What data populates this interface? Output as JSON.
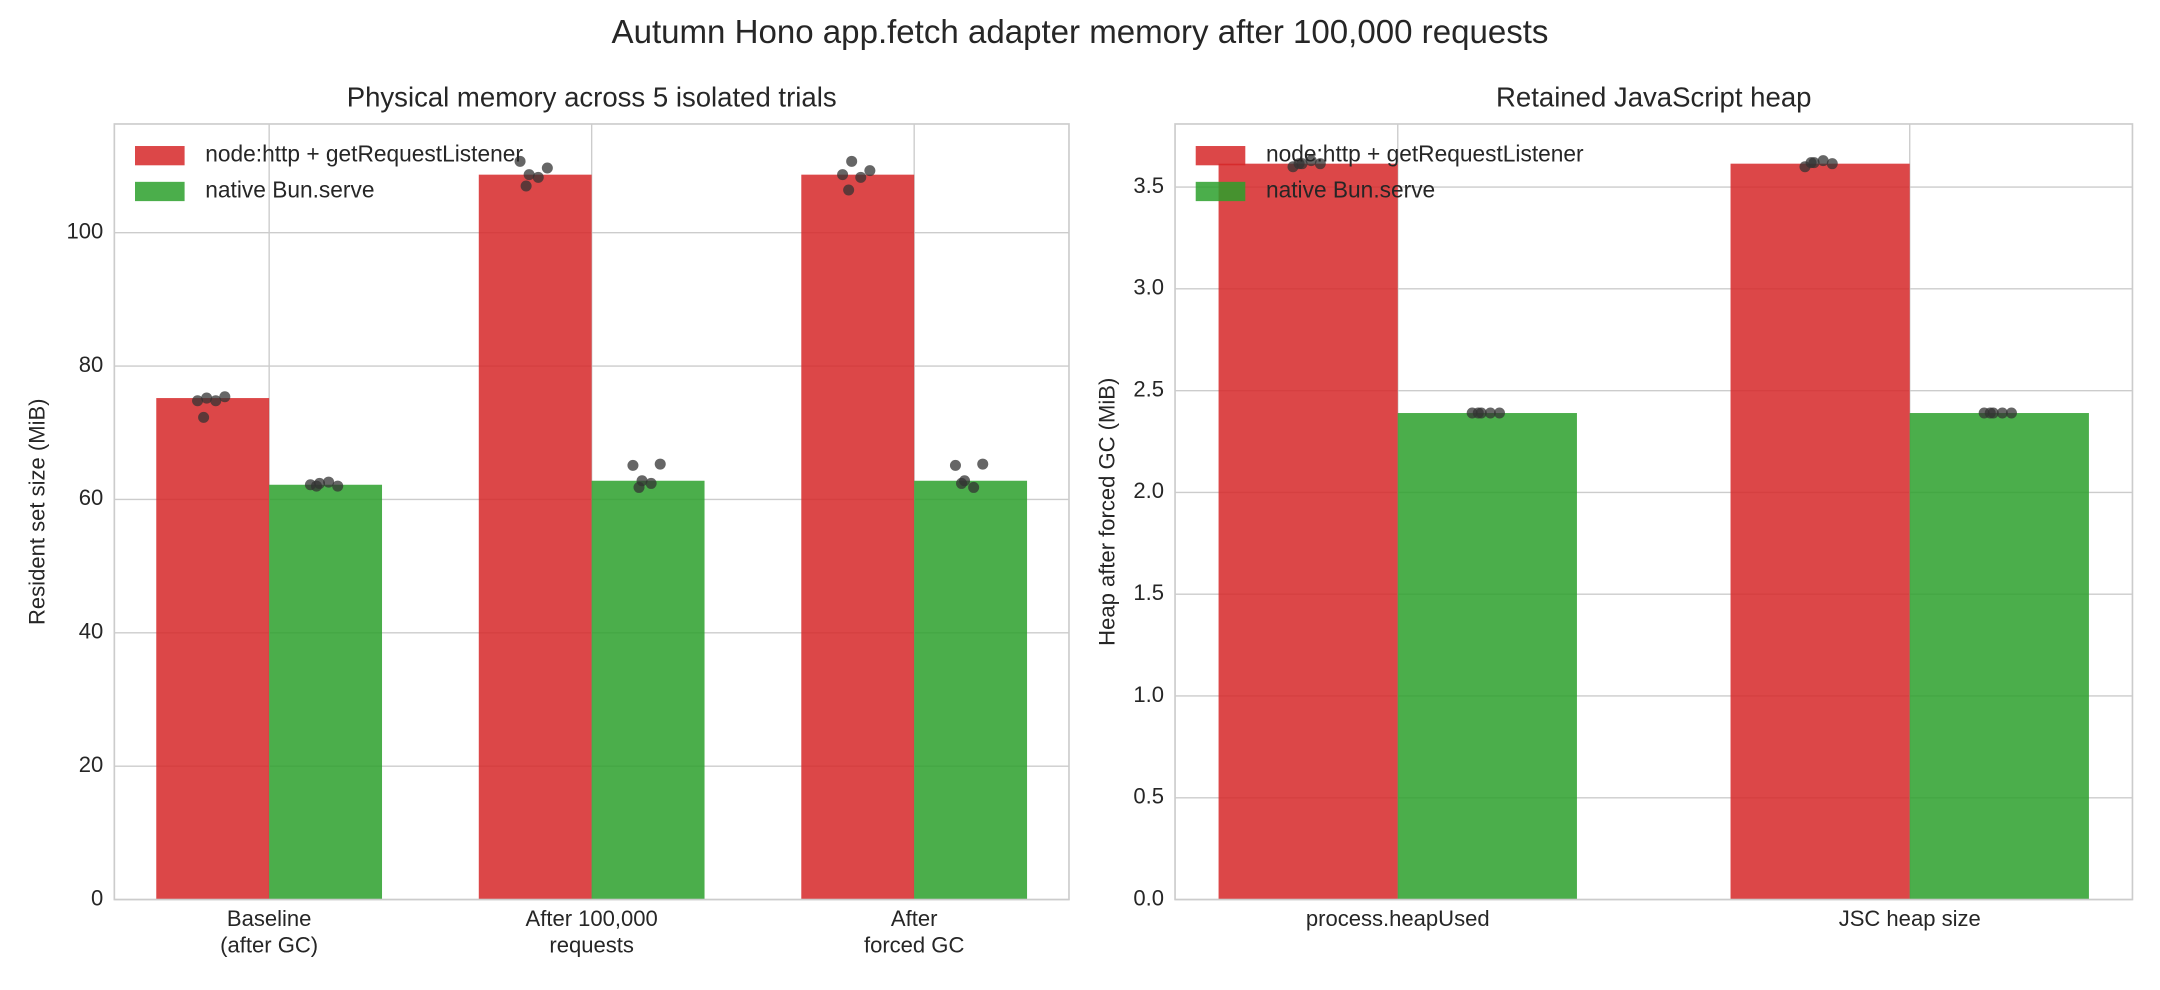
{
  "figure_title": "Autumn Hono app.fetch adapter memory after 100,000 requests",
  "chart_data": [
    {
      "type": "bar",
      "title": "Physical memory across 5 isolated trials",
      "y_label": "Resident set size (MiB)",
      "categories": [
        "Baseline\n(after GC)",
        "After 100,000\nrequests",
        "After\nforced GC"
      ],
      "series": [
        {
          "name": "node:http + getRequestListener",
          "color": "#d62728",
          "values": [
            75.2,
            108.7,
            108.7
          ],
          "trials": [
            [
              74.8,
              75.2,
              74.8,
              75.4,
              72.3
            ],
            [
              110.7,
              108.7,
              108.3,
              109.7,
              107.0
            ],
            [
              108.7,
              110.7,
              108.3,
              109.3,
              106.4
            ]
          ]
        },
        {
          "name": "native Bun.serve",
          "color": "#2ca02c",
          "values": [
            62.2,
            62.8,
            62.8
          ],
          "trials": [
            [
              62.2,
              62.4,
              62.6,
              62.0,
              62.0
            ],
            [
              65.1,
              62.8,
              62.4,
              65.3,
              61.8
            ],
            [
              65.1,
              62.8,
              61.8,
              65.3,
              62.4
            ]
          ]
        }
      ],
      "ylim": [
        0,
        116.3
      ],
      "yticks": [
        0,
        20,
        40,
        60,
        80,
        100
      ],
      "grid": true,
      "legend": "upper left"
    },
    {
      "type": "bar",
      "title": "Retained JavaScript heap",
      "y_label": "Heap after forced GC (MiB)",
      "categories": [
        "process.heapUsed",
        "JSC heap size"
      ],
      "series": [
        {
          "name": "node:http + getRequestListener",
          "color": "#d62728",
          "values": [
            3.615,
            3.615
          ],
          "trials": [
            [
              3.6,
              3.615,
              3.63,
              3.615,
              3.615
            ],
            [
              3.6,
              3.62,
              3.63,
              3.615,
              3.62
            ]
          ]
        },
        {
          "name": "native Bun.serve",
          "color": "#2ca02c",
          "values": [
            2.39,
            2.39
          ],
          "trials": [
            [
              2.39,
              2.39,
              2.39,
              2.39,
              2.39
            ],
            [
              2.39,
              2.39,
              2.39,
              2.39,
              2.39
            ]
          ]
        }
      ],
      "ylim": [
        0,
        3.81
      ],
      "yticks": [
        {
          "value": 0,
          "label": "0.0"
        },
        0.5,
        {
          "value": 1,
          "label": "1.0"
        },
        1.5,
        {
          "value": 2,
          "label": "2.0"
        },
        2.5,
        {
          "value": 3,
          "label": "3.0"
        },
        3.5
      ],
      "grid": true,
      "legend": "upper left"
    }
  ]
}
